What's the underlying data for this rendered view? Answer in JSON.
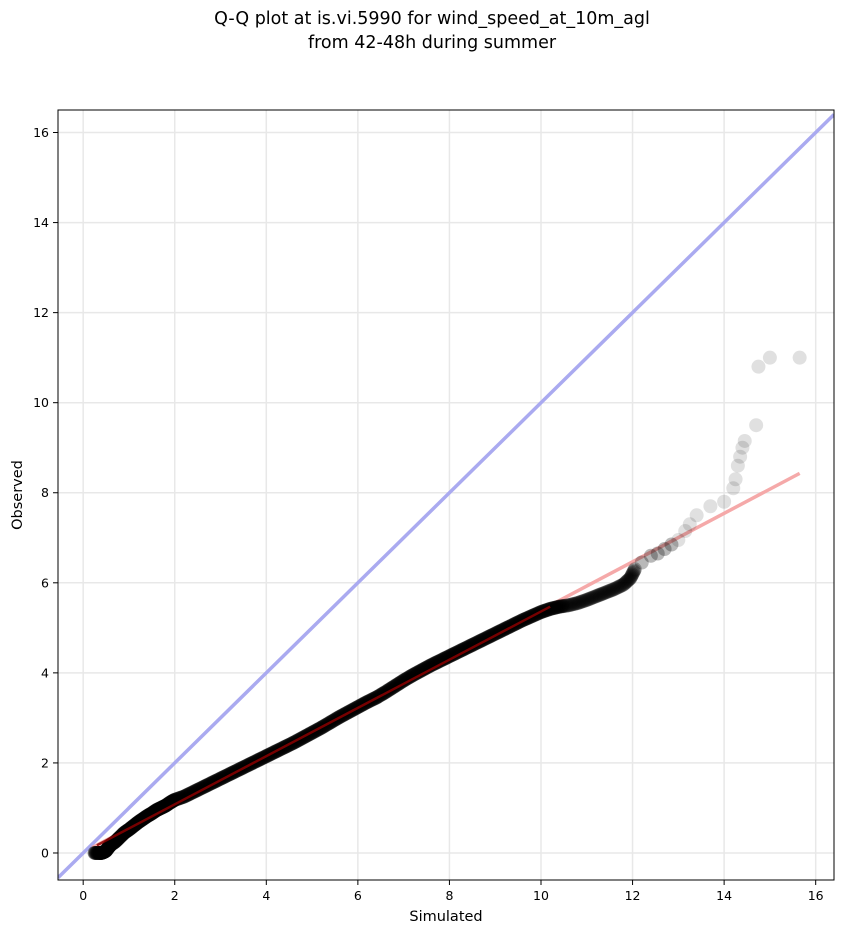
{
  "chart_data": {
    "type": "scatter",
    "title_line1": "Q-Q plot at is.vi.5990 for wind_speed_at_10m_agl",
    "title_line2": "from 42-48h during summer",
    "xlabel": "Simulated",
    "ylabel": "Observed",
    "xlim": [
      -0.55,
      16.4
    ],
    "ylim": [
      -0.6,
      16.5
    ],
    "xticks": [
      0,
      2,
      4,
      6,
      8,
      10,
      12,
      14,
      16
    ],
    "yticks": [
      0,
      2,
      4,
      6,
      8,
      10,
      12,
      14,
      16
    ],
    "grid": true,
    "colors": {
      "points": "#000000",
      "identity_line": "#aaaaf0",
      "fit_line": "#f5a9a9",
      "fit_line_dense": "#8b0000",
      "grid": "#e8e8e8"
    },
    "identity_line": {
      "x": [
        -0.55,
        16.4
      ],
      "y": [
        -0.55,
        16.4
      ]
    },
    "fit_line": {
      "x": [
        0.2,
        15.65
      ],
      "y": [
        0.12,
        8.43
      ]
    },
    "points": [
      [
        0.25,
        0.0
      ],
      [
        0.35,
        0.0
      ],
      [
        0.4,
        0.0
      ],
      [
        0.45,
        0.02
      ],
      [
        0.5,
        0.05
      ],
      [
        0.55,
        0.12
      ],
      [
        0.6,
        0.18
      ],
      [
        0.7,
        0.25
      ],
      [
        0.8,
        0.35
      ],
      [
        0.9,
        0.45
      ],
      [
        1.0,
        0.52
      ],
      [
        1.1,
        0.6
      ],
      [
        1.2,
        0.68
      ],
      [
        1.3,
        0.75
      ],
      [
        1.4,
        0.82
      ],
      [
        1.5,
        0.88
      ],
      [
        1.6,
        0.95
      ],
      [
        1.7,
        1.0
      ],
      [
        1.8,
        1.05
      ],
      [
        1.9,
        1.12
      ],
      [
        2.0,
        1.18
      ],
      [
        2.2,
        1.25
      ],
      [
        2.4,
        1.35
      ],
      [
        2.6,
        1.45
      ],
      [
        2.8,
        1.55
      ],
      [
        3.0,
        1.65
      ],
      [
        3.2,
        1.75
      ],
      [
        3.4,
        1.85
      ],
      [
        3.6,
        1.95
      ],
      [
        3.8,
        2.05
      ],
      [
        4.0,
        2.15
      ],
      [
        4.2,
        2.25
      ],
      [
        4.4,
        2.35
      ],
      [
        4.6,
        2.45
      ],
      [
        4.8,
        2.56
      ],
      [
        5.0,
        2.67
      ],
      [
        5.2,
        2.78
      ],
      [
        5.4,
        2.9
      ],
      [
        5.6,
        3.02
      ],
      [
        5.8,
        3.13
      ],
      [
        6.0,
        3.24
      ],
      [
        6.2,
        3.35
      ],
      [
        6.4,
        3.45
      ],
      [
        6.6,
        3.57
      ],
      [
        6.8,
        3.7
      ],
      [
        7.0,
        3.83
      ],
      [
        7.2,
        3.95
      ],
      [
        7.4,
        4.06
      ],
      [
        7.6,
        4.17
      ],
      [
        7.8,
        4.27
      ],
      [
        8.0,
        4.37
      ],
      [
        8.2,
        4.47
      ],
      [
        8.4,
        4.57
      ],
      [
        8.6,
        4.67
      ],
      [
        8.8,
        4.77
      ],
      [
        9.0,
        4.87
      ],
      [
        9.2,
        4.97
      ],
      [
        9.4,
        5.07
      ],
      [
        9.6,
        5.17
      ],
      [
        9.8,
        5.26
      ],
      [
        10.0,
        5.35
      ],
      [
        10.2,
        5.42
      ],
      [
        10.4,
        5.47
      ],
      [
        10.6,
        5.5
      ],
      [
        10.8,
        5.55
      ],
      [
        11.0,
        5.62
      ],
      [
        11.2,
        5.7
      ],
      [
        11.4,
        5.78
      ],
      [
        11.6,
        5.86
      ],
      [
        11.8,
        5.96
      ],
      [
        11.95,
        6.1
      ],
      [
        12.05,
        6.3
      ],
      [
        12.2,
        6.45
      ],
      [
        12.4,
        6.6
      ],
      [
        12.55,
        6.65
      ],
      [
        12.7,
        6.75
      ],
      [
        12.85,
        6.85
      ],
      [
        13.0,
        6.95
      ],
      [
        13.15,
        7.15
      ],
      [
        13.25,
        7.3
      ],
      [
        13.4,
        7.5
      ],
      [
        13.7,
        7.7
      ],
      [
        14.0,
        7.8
      ],
      [
        14.2,
        8.1
      ],
      [
        14.25,
        8.3
      ],
      [
        14.3,
        8.6
      ],
      [
        14.35,
        8.8
      ],
      [
        14.4,
        9.0
      ],
      [
        14.45,
        9.15
      ],
      [
        14.7,
        9.5
      ],
      [
        14.75,
        10.8
      ],
      [
        15.0,
        11.0
      ],
      [
        15.65,
        11.0
      ]
    ]
  }
}
